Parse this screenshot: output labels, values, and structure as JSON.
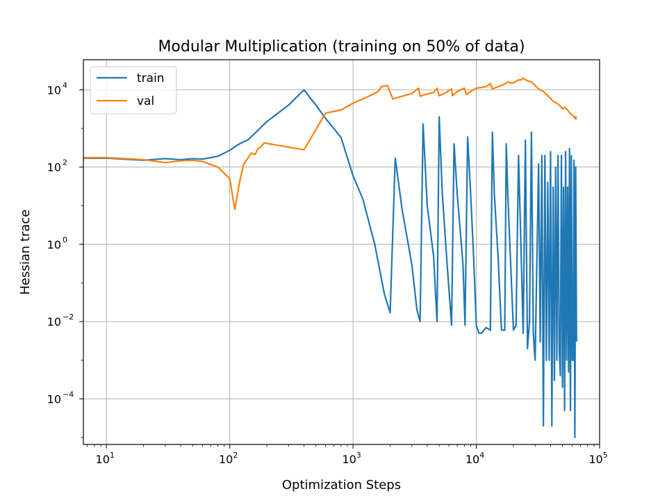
{
  "chart_data": {
    "type": "line",
    "title": "Modular Multiplication (training on 50% of data)",
    "xlabel": "Optimization Steps",
    "ylabel": "Hessian trace",
    "xscale": "log",
    "yscale": "log",
    "xlim": [
      6.5,
      100000
    ],
    "ylim": [
      6.6e-06,
      60000
    ],
    "grid": true,
    "legend_position": "top-left",
    "x_ticks": [
      {
        "base": "10",
        "exp": "1",
        "value": 10
      },
      {
        "base": "10",
        "exp": "2",
        "value": 100
      },
      {
        "base": "10",
        "exp": "3",
        "value": 1000
      },
      {
        "base": "10",
        "exp": "4",
        "value": 10000
      },
      {
        "base": "10",
        "exp": "5",
        "value": 100000
      }
    ],
    "y_ticks": [
      {
        "base": "10",
        "exp": "−4",
        "value": 0.0001
      },
      {
        "base": "10",
        "exp": "−2",
        "value": 0.01
      },
      {
        "base": "10",
        "exp": "0",
        "value": 1
      },
      {
        "base": "10",
        "exp": "2",
        "value": 100
      },
      {
        "base": "10",
        "exp": "4",
        "value": 10000
      }
    ],
    "series": [
      {
        "name": "train",
        "color": "#1f77b4",
        "points": [
          [
            6.5,
            170
          ],
          [
            10,
            170
          ],
          [
            20,
            150
          ],
          [
            30,
            165
          ],
          [
            40,
            155
          ],
          [
            50,
            165
          ],
          [
            60,
            160
          ],
          [
            80,
            190
          ],
          [
            100,
            270
          ],
          [
            120,
            400
          ],
          [
            140,
            500
          ],
          [
            160,
            750
          ],
          [
            200,
            1500
          ],
          [
            300,
            4000
          ],
          [
            400,
            10000
          ],
          [
            500,
            4000
          ],
          [
            600,
            1800
          ],
          [
            800,
            580
          ],
          [
            1000,
            60
          ],
          [
            1200,
            15
          ],
          [
            1500,
            1
          ],
          [
            1800,
            0.05
          ],
          [
            2000,
            0.017
          ],
          [
            2200,
            170
          ],
          [
            2500,
            8
          ],
          [
            3000,
            0.3
          ],
          [
            3300,
            0.02
          ],
          [
            3500,
            0.01
          ],
          [
            3700,
            1300
          ],
          [
            4000,
            10
          ],
          [
            4500,
            0.5
          ],
          [
            4800,
            0.01
          ],
          [
            5000,
            2000
          ],
          [
            5300,
            20
          ],
          [
            5800,
            0.3
          ],
          [
            6300,
            0.008
          ],
          [
            6600,
            400
          ],
          [
            7000,
            20
          ],
          [
            7800,
            0.3
          ],
          [
            8100,
            0.008
          ],
          [
            8500,
            600
          ],
          [
            9000,
            20
          ],
          [
            9500,
            0.5
          ],
          [
            10000,
            0.008
          ],
          [
            10500,
            0.005
          ],
          [
            11000,
            0.005
          ],
          [
            12000,
            0.007
          ],
          [
            13000,
            0.006
          ],
          [
            13500,
            800
          ],
          [
            14000,
            20
          ],
          [
            15000,
            0.5
          ],
          [
            16000,
            0.006
          ],
          [
            17000,
            0.006
          ],
          [
            17500,
            400
          ],
          [
            18000,
            20
          ],
          [
            19000,
            0.3
          ],
          [
            20000,
            0.006
          ],
          [
            21000,
            0.008
          ],
          [
            22000,
            200
          ],
          [
            23000,
            1
          ],
          [
            24000,
            0.005
          ],
          [
            25000,
            500
          ],
          [
            26000,
            0.002
          ],
          [
            27000,
            0.01
          ],
          [
            28000,
            800
          ],
          [
            29000,
            0.005
          ],
          [
            30000,
            0.001
          ],
          [
            32000,
            120
          ],
          [
            33000,
            0.003
          ],
          [
            34000,
            200
          ],
          [
            35000,
            2e-05
          ],
          [
            36000,
            200
          ],
          [
            37000,
            0.001
          ],
          [
            38000,
            40
          ],
          [
            39000,
            0.001
          ],
          [
            40000,
            250
          ],
          [
            41000,
            2e-05
          ],
          [
            42000,
            30
          ],
          [
            43000,
            0.0003
          ],
          [
            44000,
            100
          ],
          [
            45000,
            0.001
          ],
          [
            46000,
            200
          ],
          [
            47000,
            0.002
          ],
          [
            48000,
            0.0004
          ],
          [
            49000,
            200
          ],
          [
            50000,
            0.0002
          ],
          [
            51000,
            30
          ],
          [
            52000,
            5e-05
          ],
          [
            53000,
            250
          ],
          [
            54000,
            0.001
          ],
          [
            55000,
            30
          ],
          [
            56000,
            0.0005
          ],
          [
            57000,
            300
          ],
          [
            58000,
            5e-05
          ],
          [
            59000,
            200
          ],
          [
            60000,
            0.001
          ],
          [
            61000,
            0.001
          ],
          [
            62000,
            150
          ],
          [
            63000,
            1e-05
          ],
          [
            64000,
            100
          ],
          [
            65000,
            0.003
          ]
        ]
      },
      {
        "name": "val",
        "color": "#ff7f0e",
        "points": [
          [
            6.5,
            175
          ],
          [
            10,
            175
          ],
          [
            20,
            155
          ],
          [
            30,
            130
          ],
          [
            40,
            145
          ],
          [
            50,
            150
          ],
          [
            60,
            140
          ],
          [
            80,
            100
          ],
          [
            100,
            50
          ],
          [
            110,
            8
          ],
          [
            120,
            40
          ],
          [
            130,
            120
          ],
          [
            150,
            230
          ],
          [
            160,
            210
          ],
          [
            170,
            300
          ],
          [
            180,
            340
          ],
          [
            190,
            420
          ],
          [
            400,
            280
          ],
          [
            600,
            2500
          ],
          [
            800,
            3000
          ],
          [
            1000,
            4500
          ],
          [
            1300,
            6500
          ],
          [
            1600,
            9000
          ],
          [
            1700,
            12000
          ],
          [
            1900,
            13000
          ],
          [
            2100,
            5800
          ],
          [
            2500,
            6800
          ],
          [
            3000,
            8000
          ],
          [
            3400,
            11000
          ],
          [
            3500,
            6800
          ],
          [
            4000,
            7800
          ],
          [
            4500,
            8500
          ],
          [
            4800,
            11000
          ],
          [
            5000,
            7000
          ],
          [
            5500,
            8000
          ],
          [
            6300,
            10500
          ],
          [
            6400,
            7000
          ],
          [
            7000,
            9000
          ],
          [
            8000,
            11000
          ],
          [
            8300,
            7500
          ],
          [
            9000,
            9000
          ],
          [
            10000,
            11000
          ],
          [
            12000,
            12000
          ],
          [
            13000,
            14500
          ],
          [
            13500,
            10500
          ],
          [
            15000,
            12000
          ],
          [
            17000,
            14000
          ],
          [
            18000,
            16000
          ],
          [
            19000,
            15000
          ],
          [
            20000,
            15000
          ],
          [
            22000,
            18000
          ],
          [
            23000,
            18000
          ],
          [
            24000,
            20000
          ],
          [
            26000,
            17000
          ],
          [
            28000,
            16000
          ],
          [
            30000,
            13000
          ],
          [
            32000,
            10500
          ],
          [
            35000,
            9000
          ],
          [
            38000,
            7000
          ],
          [
            40000,
            6000
          ],
          [
            42000,
            5000
          ],
          [
            45000,
            4500
          ],
          [
            48000,
            3800
          ],
          [
            50000,
            3200
          ],
          [
            52000,
            3500
          ],
          [
            55000,
            3000
          ],
          [
            58000,
            2400
          ],
          [
            60000,
            2200
          ],
          [
            62000,
            2000
          ],
          [
            63000,
            1800
          ],
          [
            64000,
            2000
          ],
          [
            65000,
            1700
          ]
        ]
      }
    ]
  }
}
